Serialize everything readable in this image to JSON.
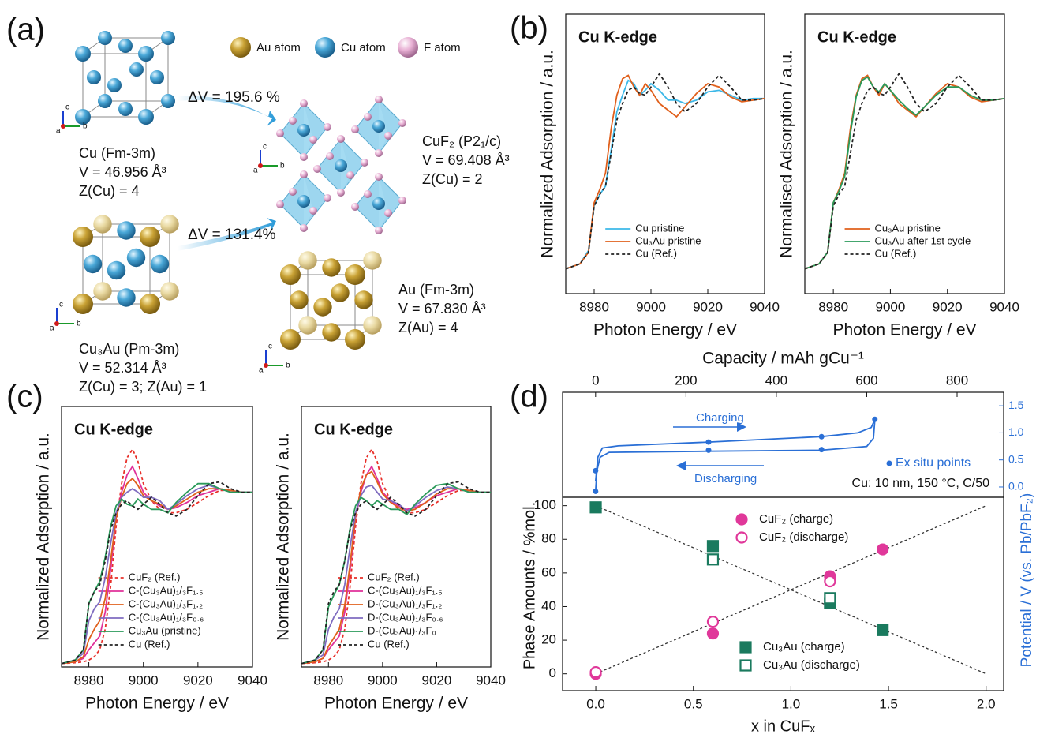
{
  "panel_labels": [
    "(a)",
    "(b)",
    "(c)",
    "(d)"
  ],
  "panel_a": {
    "legend": [
      "Au atom",
      "Cu atom",
      "F atom"
    ],
    "axis_labels": [
      "a",
      "b",
      "c"
    ],
    "volume_changes": [
      "ΔV = 195.6 %",
      "ΔV = 131.4%"
    ],
    "structures": [
      {
        "name": "Cu (Fm-3m)",
        "volume": "V = 46.956 Å³",
        "z": "Z(Cu) = 4"
      },
      {
        "name": "CuF₂ (P2₁/c)",
        "volume": "V = 69.408 Å³",
        "z": "Z(Cu) = 2"
      },
      {
        "name": "Cu₃Au (Pm-3m)",
        "volume": "V = 52.314 Å³",
        "z": "Z(Cu) = 3; Z(Au) = 1"
      },
      {
        "name": "Au (Fm-3m)",
        "volume": "V = 67.830 Å³",
        "z": "Z(Au) = 4"
      }
    ]
  },
  "chart_data": [
    {
      "type": "line",
      "title": "Cu K-edge",
      "xlabel": "Photon Energy / eV",
      "ylabel": "Normalized Adsorption / a.u.",
      "xlim": [
        8970,
        9040
      ],
      "xticks": [
        8980,
        9000,
        9020,
        9040
      ],
      "ylim": [
        -0.15,
        1.54
      ],
      "legend": "lower center",
      "x": [
        8970,
        8975,
        8978,
        8980,
        8982,
        8984,
        8986,
        8988,
        8990,
        8992,
        8994,
        8996,
        8998,
        9000,
        9003,
        9006,
        9009,
        9012,
        9016,
        9020,
        9024,
        9028,
        9032,
        9036,
        9040
      ],
      "series": [
        {
          "name": "Cu pristine",
          "color": "#3cb8e8",
          "values": [
            0,
            0.03,
            0.11,
            0.38,
            0.45,
            0.5,
            0.72,
            0.95,
            1.05,
            1.14,
            1.12,
            1.05,
            1.08,
            1.12,
            1.08,
            1.02,
            1.02,
            1.0,
            1.02,
            1.07,
            1.08,
            1.05,
            1.02,
            1.03,
            1.03
          ]
        },
        {
          "name": "Cu₃Au pristine",
          "color": "#e0601c",
          "values": [
            0,
            0.03,
            0.1,
            0.4,
            0.48,
            0.58,
            0.85,
            1.05,
            1.15,
            1.17,
            1.1,
            1.05,
            1.12,
            1.08,
            1.0,
            0.96,
            0.92,
            0.98,
            1.06,
            1.12,
            1.1,
            1.04,
            1.01,
            1.02,
            1.03
          ]
        },
        {
          "name": "Cu (Ref.)",
          "color": "#222222",
          "dash": true,
          "values": [
            0,
            0.03,
            0.1,
            0.38,
            0.45,
            0.5,
            0.7,
            0.9,
            1.0,
            1.08,
            1.1,
            1.06,
            1.05,
            1.1,
            1.18,
            1.1,
            1.0,
            0.95,
            1.0,
            1.1,
            1.17,
            1.1,
            1.02,
            1.02,
            1.03
          ]
        }
      ]
    },
    {
      "type": "line",
      "title": "Cu K-edge",
      "xlabel": "Photon Energy / eV",
      "ylabel": "Normalised Adsorption / a.u.",
      "xlim": [
        8970,
        9040
      ],
      "xticks": [
        8980,
        9000,
        9020,
        9040
      ],
      "ylim": [
        -0.15,
        1.54
      ],
      "legend": "lower center",
      "x": [
        8970,
        8975,
        8978,
        8980,
        8982,
        8984,
        8986,
        8988,
        8990,
        8992,
        8994,
        8996,
        8998,
        9000,
        9003,
        9006,
        9009,
        9012,
        9016,
        9020,
        9024,
        9028,
        9032,
        9036,
        9040
      ],
      "series": [
        {
          "name": "Cu₃Au pristine",
          "color": "#e0601c",
          "values": [
            0,
            0.03,
            0.1,
            0.4,
            0.48,
            0.58,
            0.85,
            1.05,
            1.15,
            1.17,
            1.1,
            1.05,
            1.12,
            1.08,
            1.0,
            0.96,
            0.92,
            0.98,
            1.06,
            1.12,
            1.1,
            1.04,
            1.01,
            1.02,
            1.03
          ]
        },
        {
          "name": "Cu₃Au after 1st cycle",
          "color": "#2a9a5a",
          "values": [
            0,
            0.03,
            0.1,
            0.4,
            0.47,
            0.56,
            0.82,
            1.04,
            1.14,
            1.16,
            1.1,
            1.07,
            1.12,
            1.08,
            1.02,
            0.97,
            0.93,
            0.98,
            1.05,
            1.1,
            1.1,
            1.05,
            1.02,
            1.02,
            1.03
          ]
        },
        {
          "name": "Cu (Ref.)",
          "color": "#222222",
          "dash": true,
          "values": [
            0,
            0.03,
            0.1,
            0.38,
            0.45,
            0.5,
            0.7,
            0.9,
            1.0,
            1.08,
            1.1,
            1.06,
            1.05,
            1.1,
            1.18,
            1.1,
            1.0,
            0.95,
            1.0,
            1.1,
            1.17,
            1.1,
            1.02,
            1.02,
            1.03
          ]
        }
      ]
    },
    {
      "type": "line",
      "title": "Cu K-edge",
      "xlabel": "Photon Energy / eV",
      "ylabel": "Normalized Adsorption / a.u.",
      "xlim": [
        8970,
        9040
      ],
      "xticks": [
        8980,
        9000,
        9020,
        9040
      ],
      "ylim": [
        -0.02,
        1.5
      ],
      "legend": "lower left",
      "x": [
        8970,
        8975,
        8978,
        8980,
        8982,
        8984,
        8986,
        8988,
        8990,
        8992,
        8994,
        8996,
        8998,
        9000,
        9003,
        9006,
        9009,
        9012,
        9016,
        9020,
        9024,
        9028,
        9032,
        9036,
        9040
      ],
      "series": [
        {
          "name": "CuF₂ (Ref.)",
          "color": "#e8302a",
          "dash": true,
          "values": [
            0,
            0.005,
            0.01,
            0.02,
            0.04,
            0.08,
            0.2,
            0.45,
            0.8,
            1.05,
            1.2,
            1.25,
            1.18,
            1.05,
            0.95,
            0.9,
            0.88,
            0.88,
            0.9,
            0.94,
            0.98,
            1.01,
            1.01,
            1.0,
            1.0
          ]
        },
        {
          "name": "C-(Cu₃Au)₁/₃F₁.₅",
          "color": "#e0309a",
          "values": [
            0,
            0.01,
            0.03,
            0.08,
            0.12,
            0.16,
            0.3,
            0.55,
            0.85,
            1.0,
            1.1,
            1.15,
            1.08,
            1.0,
            0.95,
            0.92,
            0.9,
            0.91,
            0.94,
            0.98,
            1.0,
            1.02,
            1.01,
            1.0,
            1.0
          ]
        },
        {
          "name": "C-(Cu₃Au)₁/₃F₁.₂",
          "color": "#e0601c",
          "values": [
            0,
            0.01,
            0.04,
            0.14,
            0.2,
            0.25,
            0.38,
            0.6,
            0.85,
            0.97,
            1.05,
            1.08,
            1.04,
            0.98,
            0.95,
            0.93,
            0.9,
            0.92,
            0.96,
            1.0,
            1.02,
            1.02,
            1.01,
            1.0,
            1.0
          ]
        },
        {
          "name": "C-(Cu₃Au)₁/₃F₀.₆",
          "color": "#7f6cc0",
          "values": [
            0,
            0.02,
            0.06,
            0.25,
            0.32,
            0.36,
            0.5,
            0.7,
            0.88,
            0.97,
            1.0,
            1.02,
            1.0,
            0.97,
            0.97,
            0.95,
            0.9,
            0.93,
            0.98,
            1.02,
            1.04,
            1.02,
            1.0,
            1.0,
            1.0
          ]
        },
        {
          "name": "Cu₃Au (pristine)",
          "color": "#2a9a5a",
          "values": [
            0,
            0.02,
            0.08,
            0.35,
            0.42,
            0.48,
            0.62,
            0.8,
            0.92,
            0.96,
            0.93,
            0.92,
            0.96,
            0.93,
            0.9,
            0.9,
            0.88,
            0.94,
            1.0,
            1.05,
            1.05,
            1.02,
            1.0,
            1.0,
            1.0
          ]
        },
        {
          "name": "Cu (Ref.)",
          "color": "#222222",
          "dash": true,
          "values": [
            0,
            0.02,
            0.08,
            0.35,
            0.42,
            0.46,
            0.6,
            0.78,
            0.88,
            0.93,
            0.95,
            0.92,
            0.9,
            0.93,
            0.97,
            0.93,
            0.88,
            0.86,
            0.9,
            0.98,
            1.05,
            1.06,
            1.02,
            1.0,
            1.0
          ]
        }
      ]
    },
    {
      "type": "line",
      "title": "Cu K-edge",
      "xlabel": "Photon Energy / eV",
      "ylabel": "Normalized Adsorption / a.u.",
      "xlim": [
        8970,
        9040
      ],
      "xticks": [
        8980,
        9000,
        9020,
        9040
      ],
      "ylim": [
        -0.02,
        1.5
      ],
      "legend": "lower left",
      "x": [
        8970,
        8975,
        8978,
        8980,
        8982,
        8984,
        8986,
        8988,
        8990,
        8992,
        8994,
        8996,
        8998,
        9000,
        9003,
        9006,
        9009,
        9012,
        9016,
        9020,
        9024,
        9028,
        9032,
        9036,
        9040
      ],
      "series": [
        {
          "name": "CuF₂ (Ref.)",
          "color": "#e8302a",
          "dash": true,
          "values": [
            0,
            0.005,
            0.01,
            0.02,
            0.04,
            0.08,
            0.2,
            0.45,
            0.8,
            1.05,
            1.2,
            1.25,
            1.18,
            1.05,
            0.95,
            0.9,
            0.88,
            0.88,
            0.9,
            0.94,
            0.98,
            1.01,
            1.01,
            1.0,
            1.0
          ]
        },
        {
          "name": "C-(Cu₃Au)₁/₃F₁.₅",
          "color": "#e0309a",
          "values": [
            0,
            0.01,
            0.03,
            0.08,
            0.12,
            0.16,
            0.3,
            0.55,
            0.85,
            1.0,
            1.1,
            1.15,
            1.08,
            1.0,
            0.95,
            0.92,
            0.9,
            0.91,
            0.94,
            0.98,
            1.0,
            1.02,
            1.01,
            1.0,
            1.0
          ]
        },
        {
          "name": "D-(Cu₃Au)₁/₃F₁.₂",
          "color": "#e0601c",
          "values": [
            0,
            0.01,
            0.03,
            0.1,
            0.15,
            0.2,
            0.34,
            0.58,
            0.86,
            1.02,
            1.1,
            1.12,
            1.06,
            0.99,
            0.94,
            0.91,
            0.89,
            0.9,
            0.94,
            0.99,
            1.02,
            1.02,
            1.01,
            1.0,
            1.0
          ]
        },
        {
          "name": "D-(Cu₃Au)₁/₃F₀.₆",
          "color": "#7f6cc0",
          "values": [
            0,
            0.02,
            0.05,
            0.2,
            0.27,
            0.32,
            0.46,
            0.68,
            0.88,
            0.98,
            1.03,
            1.04,
            1.0,
            0.96,
            0.95,
            0.93,
            0.89,
            0.92,
            0.97,
            1.01,
            1.03,
            1.02,
            1.0,
            1.0,
            1.0
          ]
        },
        {
          "name": "D-(Cu₃Au)₁/₃F₀",
          "color": "#2a9a5a",
          "values": [
            0,
            0.02,
            0.08,
            0.33,
            0.4,
            0.46,
            0.6,
            0.79,
            0.92,
            0.97,
            0.95,
            0.92,
            0.95,
            0.93,
            0.9,
            0.9,
            0.87,
            0.93,
            0.99,
            1.04,
            1.05,
            1.02,
            1.0,
            1.0,
            1.0
          ]
        },
        {
          "name": "Cu (Ref.)",
          "color": "#222222",
          "dash": true,
          "values": [
            0,
            0.02,
            0.08,
            0.35,
            0.42,
            0.46,
            0.6,
            0.78,
            0.88,
            0.93,
            0.95,
            0.92,
            0.9,
            0.93,
            0.97,
            0.93,
            0.88,
            0.86,
            0.9,
            0.98,
            1.05,
            1.06,
            1.02,
            1.0,
            1.0
          ]
        }
      ]
    },
    {
      "type": "line",
      "xlabel": "Capacity / mAh gCu⁻¹",
      "xlim": [
        -73,
        903
      ],
      "xticks": [
        0,
        200,
        400,
        600,
        800
      ],
      "y2label": "Potential / V (vs. Pb/PbF₂)",
      "y2lim": [
        -0.19,
        1.75
      ],
      "y2ticks": [
        {
          "value": 0,
          "label": "0.0"
        },
        0.5,
        {
          "value": 1,
          "label": "1.0"
        },
        1.5
      ],
      "annotations": [
        "Charging",
        "Discharging",
        "Cu: 10 nm, 150 °C,  C/50"
      ],
      "series": [
        {
          "color": "#2a6fd6",
          "axis": "y2",
          "x": [
            0,
            5,
            15,
            50,
            250,
            500,
            580,
            610,
            618,
            615,
            600,
            500,
            250,
            30,
            10,
            3,
            0
          ],
          "values": [
            0.1,
            0.55,
            0.72,
            0.76,
            0.83,
            0.93,
            1.0,
            1.1,
            1.25,
            0.9,
            0.75,
            0.68,
            0.66,
            0.64,
            0.55,
            0.3,
            -0.08
          ]
        },
        {
          "name": "Ex situ points",
          "type": "scatter",
          "color": "#2a6fd6",
          "axis": "y2",
          "x": [
            0,
            0,
            250,
            250,
            500,
            500,
            618
          ],
          "values": [
            0.3,
            -0.08,
            0.83,
            0.68,
            0.93,
            0.69,
            1.25
          ]
        }
      ]
    },
    {
      "type": "scatter",
      "xlabel": "x in CuFₓ",
      "ylabel": "Phase Amounts / %mol.",
      "xlim": [
        -0.17,
        2.09
      ],
      "xticks": [
        {
          "value": 0,
          "label": "0.0"
        },
        0.5,
        {
          "value": 1,
          "label": "1.0"
        },
        1.5,
        {
          "value": 2,
          "label": "2.0"
        }
      ],
      "ylim": [
        -10,
        105
      ],
      "yticks": [
        0,
        20,
        40,
        60,
        80,
        100
      ],
      "series": [
        {
          "name": "CuF₂ (charge)",
          "color": "#e0389a",
          "marker": "circle",
          "filled": true,
          "x": [
            0,
            0.6,
            1.2,
            1.47
          ],
          "values": [
            0,
            24,
            58,
            74
          ]
        },
        {
          "name": "CuF₂ (discharge)",
          "color": "#e0389a",
          "marker": "circle",
          "filled": false,
          "x": [
            0,
            0.6,
            1.2
          ],
          "values": [
            1,
            31,
            55
          ]
        },
        {
          "name": "Cu₃Au (charge)",
          "color": "#1a7a5e",
          "marker": "square",
          "filled": true,
          "x": [
            0,
            0.6,
            1.2,
            1.47
          ],
          "values": [
            99,
            76,
            42,
            26
          ]
        },
        {
          "name": "Cu₃Au (discharge)",
          "color": "#1a7a5e",
          "marker": "square",
          "filled": false,
          "x": [
            0.6,
            1.2
          ],
          "values": [
            68,
            45
          ]
        }
      ],
      "trend_lines": [
        {
          "x": [
            0,
            2
          ],
          "values": [
            0,
            100
          ]
        },
        {
          "x": [
            0,
            2
          ],
          "values": [
            100,
            0
          ]
        }
      ]
    }
  ]
}
